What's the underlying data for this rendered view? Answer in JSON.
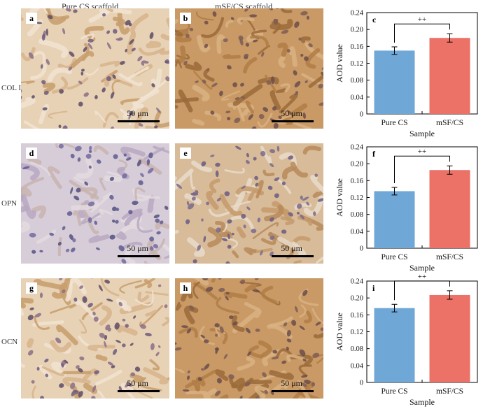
{
  "headers": {
    "col1": "Pure CS scaffold",
    "col2": "mSF/CS scaffold"
  },
  "rows": [
    {
      "label": "COL I",
      "left": {
        "letter": "a",
        "scale": "50 μm"
      },
      "right": {
        "letter": "b",
        "scale": "50 μm"
      }
    },
    {
      "label": "OPN",
      "left": {
        "letter": "d",
        "scale": "50 μm"
      },
      "right": {
        "letter": "e",
        "scale": "50 μm"
      }
    },
    {
      "label": "OCN",
      "left": {
        "letter": "g",
        "scale": "50 μm"
      },
      "right": {
        "letter": "h",
        "scale": "50 μm"
      }
    }
  ],
  "chart_data": [
    {
      "letter": "c",
      "type": "bar",
      "categories": [
        "Pure CS",
        "mSF/CS"
      ],
      "values": [
        0.15,
        0.18
      ],
      "errors": [
        0.009,
        0.01
      ],
      "colors": [
        "#6fa8d6",
        "#ec7167"
      ],
      "xlabel": "Sample",
      "ylabel": "AOD value",
      "ylim": [
        0,
        0.24
      ],
      "yticks": [
        "0",
        "0.04",
        "0.08",
        "0.12",
        "0.16",
        "0.20",
        "0.24"
      ],
      "significance": "++"
    },
    {
      "letter": "f",
      "type": "bar",
      "categories": [
        "Pure CS",
        "mSF/CS"
      ],
      "values": [
        0.135,
        0.185
      ],
      "errors": [
        0.009,
        0.01
      ],
      "colors": [
        "#6fa8d6",
        "#ec7167"
      ],
      "xlabel": "Sample",
      "ylabel": "AOD value",
      "ylim": [
        0,
        0.24
      ],
      "yticks": [
        "0",
        "0.04",
        "0.08",
        "0.12",
        "0.16",
        "0.20",
        "0.24"
      ],
      "significance": "++"
    },
    {
      "letter": "i",
      "type": "bar",
      "categories": [
        "Pure CS",
        "mSF/CS"
      ],
      "values": [
        0.176,
        0.207
      ],
      "errors": [
        0.009,
        0.01
      ],
      "colors": [
        "#6fa8d6",
        "#ec7167"
      ],
      "xlabel": "Sample",
      "ylabel": "AOD value",
      "ylim": [
        0,
        0.24
      ],
      "yticks": [
        "0",
        "0.04",
        "0.08",
        "0.12",
        "0.16",
        "0.20",
        "0.24"
      ],
      "significance": "++"
    }
  ]
}
